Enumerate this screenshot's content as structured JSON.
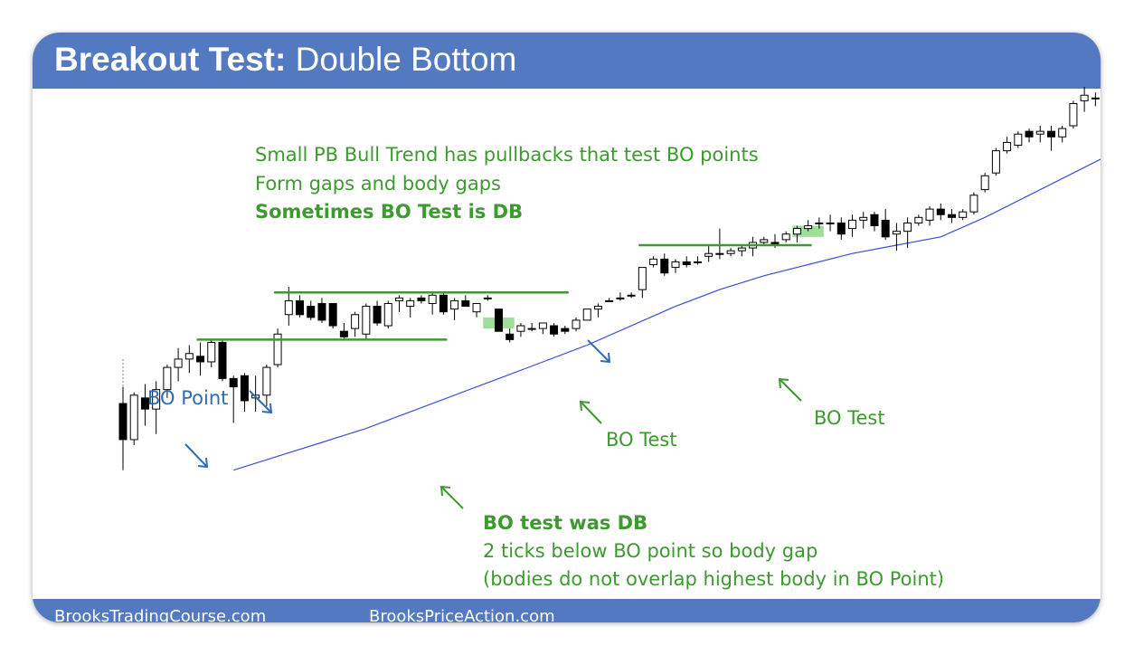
{
  "slide": {
    "title_bold": "Breakout Test:",
    "title_rest": " Double Bottom",
    "footer_left": "BrooksTradingCourse.com",
    "footer_right": "BrooksPriceAction.com",
    "header_color": "#5379c0"
  },
  "chart_data": {
    "type": "candlestick",
    "bar_fill_bull": "#ffffff",
    "bar_fill_bear": "#000000",
    "moving_average_color": "#3b4fd6",
    "breakout_line_color": "#3c9a2e",
    "annotation_green": "#3c9a2e",
    "annotation_blue": "#2e6db4",
    "highlight_color": "#86d67e",
    "bars": [
      {
        "o": 57,
        "h": 63,
        "l": 33,
        "c": 44
      },
      {
        "o": 44,
        "h": 61,
        "l": 42,
        "c": 60
      },
      {
        "o": 59,
        "h": 64,
        "l": 49,
        "c": 55
      },
      {
        "o": 55,
        "h": 65,
        "l": 46,
        "c": 62
      },
      {
        "o": 62,
        "h": 71,
        "l": 59,
        "c": 70
      },
      {
        "o": 70,
        "h": 77,
        "l": 65,
        "c": 73
      },
      {
        "o": 73,
        "h": 78,
        "l": 68,
        "c": 75
      },
      {
        "o": 74,
        "h": 79,
        "l": 67,
        "c": 72
      },
      {
        "o": 72,
        "h": 80,
        "l": 70,
        "c": 79
      },
      {
        "o": 79,
        "h": 80,
        "l": 65,
        "c": 66
      },
      {
        "o": 66,
        "h": 67,
        "l": 50,
        "c": 63
      },
      {
        "o": 67,
        "h": 68,
        "l": 54,
        "c": 58
      },
      {
        "o": 59,
        "h": 67,
        "l": 54,
        "c": 60
      },
      {
        "o": 60,
        "h": 71,
        "l": 56,
        "c": 70
      },
      {
        "o": 71,
        "h": 84,
        "l": 70,
        "c": 82
      },
      {
        "o": 89,
        "h": 99,
        "l": 85,
        "c": 94
      },
      {
        "o": 94,
        "h": 96,
        "l": 88,
        "c": 89
      },
      {
        "o": 92,
        "h": 94,
        "l": 87,
        "c": 88
      },
      {
        "o": 93,
        "h": 95,
        "l": 86,
        "c": 87
      },
      {
        "o": 93,
        "h": 93,
        "l": 84,
        "c": 85
      },
      {
        "o": 83,
        "h": 86,
        "l": 80,
        "c": 81
      },
      {
        "o": 84,
        "h": 90,
        "l": 81,
        "c": 89
      },
      {
        "o": 82,
        "h": 93,
        "l": 80,
        "c": 92
      },
      {
        "o": 92,
        "h": 94,
        "l": 85,
        "c": 86
      },
      {
        "o": 85,
        "h": 94,
        "l": 84,
        "c": 93
      },
      {
        "o": 94,
        "h": 96,
        "l": 90,
        "c": 95
      },
      {
        "o": 92,
        "h": 95,
        "l": 88,
        "c": 94
      },
      {
        "o": 95,
        "h": 96,
        "l": 93,
        "c": 94
      },
      {
        "o": 93,
        "h": 97,
        "l": 89,
        "c": 96
      },
      {
        "o": 96,
        "h": 97,
        "l": 89,
        "c": 90
      },
      {
        "o": 91,
        "h": 95,
        "l": 87,
        "c": 94
      },
      {
        "o": 94,
        "h": 96,
        "l": 92,
        "c": 92
      },
      {
        "o": 90,
        "h": 93,
        "l": 88,
        "c": 93
      },
      {
        "o": 95,
        "h": 96,
        "l": 94,
        "c": 95
      },
      {
        "o": 91,
        "h": 91,
        "l": 83,
        "c": 83
      },
      {
        "o": 82,
        "h": 84,
        "l": 79,
        "c": 80
      },
      {
        "o": 83,
        "h": 86,
        "l": 81,
        "c": 85
      },
      {
        "o": 84,
        "h": 86,
        "l": 83,
        "c": 84
      },
      {
        "o": 84,
        "h": 86,
        "l": 82,
        "c": 86
      },
      {
        "o": 85,
        "h": 86,
        "l": 81,
        "c": 82
      },
      {
        "o": 84,
        "h": 85,
        "l": 82,
        "c": 83
      },
      {
        "o": 84,
        "h": 88,
        "l": 83,
        "c": 87
      },
      {
        "o": 87,
        "h": 91,
        "l": 87,
        "c": 91
      },
      {
        "o": 91,
        "h": 93,
        "l": 88,
        "c": 92
      },
      {
        "o": 94,
        "h": 95,
        "l": 94,
        "c": 94
      },
      {
        "o": 95,
        "h": 97,
        "l": 94,
        "c": 95
      },
      {
        "o": 96,
        "h": 97,
        "l": 95,
        "c": 96
      },
      {
        "o": 98,
        "h": 106,
        "l": 95,
        "c": 106
      },
      {
        "o": 107,
        "h": 110,
        "l": 106,
        "c": 109
      },
      {
        "o": 109,
        "h": 111,
        "l": 103,
        "c": 104
      },
      {
        "o": 106,
        "h": 109,
        "l": 104,
        "c": 108
      },
      {
        "o": 108,
        "h": 110,
        "l": 106,
        "c": 107
      },
      {
        "o": 108,
        "h": 110,
        "l": 107,
        "c": 108
      },
      {
        "o": 110,
        "h": 114,
        "l": 108,
        "c": 111
      },
      {
        "o": 111,
        "h": 120,
        "l": 109,
        "c": 111
      },
      {
        "o": 111,
        "h": 113,
        "l": 110,
        "c": 112
      },
      {
        "o": 112,
        "h": 114,
        "l": 110,
        "c": 113
      },
      {
        "o": 113,
        "h": 117,
        "l": 110,
        "c": 115
      },
      {
        "o": 115,
        "h": 117,
        "l": 114,
        "c": 116
      },
      {
        "o": 115,
        "h": 118,
        "l": 113,
        "c": 114
      },
      {
        "o": 116,
        "h": 119,
        "l": 115,
        "c": 118
      },
      {
        "o": 118,
        "h": 121,
        "l": 115,
        "c": 120
      },
      {
        "o": 120,
        "h": 123,
        "l": 119,
        "c": 121
      },
      {
        "o": 122,
        "h": 124,
        "l": 120,
        "c": 122
      },
      {
        "o": 122,
        "h": 125,
        "l": 119,
        "c": 122
      },
      {
        "o": 122,
        "h": 124,
        "l": 116,
        "c": 118
      },
      {
        "o": 120,
        "h": 125,
        "l": 117,
        "c": 123
      },
      {
        "o": 123,
        "h": 126,
        "l": 120,
        "c": 124
      },
      {
        "o": 125,
        "h": 126,
        "l": 119,
        "c": 121
      },
      {
        "o": 123,
        "h": 127,
        "l": 116,
        "c": 117
      },
      {
        "o": 118,
        "h": 122,
        "l": 112,
        "c": 119
      },
      {
        "o": 119,
        "h": 124,
        "l": 113,
        "c": 122
      },
      {
        "o": 122,
        "h": 125,
        "l": 121,
        "c": 124
      },
      {
        "o": 123,
        "h": 128,
        "l": 121,
        "c": 127
      },
      {
        "o": 127,
        "h": 129,
        "l": 123,
        "c": 125
      },
      {
        "o": 125,
        "h": 127,
        "l": 122,
        "c": 124
      },
      {
        "o": 124,
        "h": 127,
        "l": 123,
        "c": 126
      },
      {
        "o": 126,
        "h": 133,
        "l": 125,
        "c": 132
      },
      {
        "o": 134,
        "h": 140,
        "l": 133,
        "c": 139
      },
      {
        "o": 140,
        "h": 149,
        "l": 139,
        "c": 148
      },
      {
        "o": 148,
        "h": 153,
        "l": 147,
        "c": 151
      },
      {
        "o": 150,
        "h": 155,
        "l": 149,
        "c": 154
      },
      {
        "o": 155,
        "h": 156,
        "l": 151,
        "c": 153
      },
      {
        "o": 154,
        "h": 157,
        "l": 151,
        "c": 155
      },
      {
        "o": 155,
        "h": 157,
        "l": 148,
        "c": 153
      },
      {
        "o": 153,
        "h": 157,
        "l": 151,
        "c": 156
      },
      {
        "o": 157,
        "h": 166,
        "l": 156,
        "c": 165
      },
      {
        "o": 166,
        "h": 171,
        "l": 162,
        "c": 168
      },
      {
        "o": 167,
        "h": 169,
        "l": 164,
        "c": 167
      },
      {
        "o": 166,
        "h": 171,
        "l": 163,
        "c": 168
      },
      {
        "o": 167,
        "h": 171,
        "l": 163,
        "c": 170
      },
      {
        "o": 170,
        "h": 181,
        "l": 164,
        "c": 180
      },
      {
        "o": 180,
        "h": 181,
        "l": 172,
        "c": 177
      },
      {
        "o": 176,
        "h": 179,
        "l": 174,
        "c": 175
      },
      {
        "o": 175,
        "h": 186,
        "l": 174,
        "c": 184
      },
      {
        "o": 184,
        "h": 192,
        "l": 182,
        "c": 185
      }
    ],
    "moving_average": [
      {
        "i": 10,
        "v": 33
      },
      {
        "i": 14,
        "v": 38
      },
      {
        "i": 18,
        "v": 43
      },
      {
        "i": 22,
        "v": 48
      },
      {
        "i": 26,
        "v": 54
      },
      {
        "i": 30,
        "v": 60
      },
      {
        "i": 34,
        "v": 66
      },
      {
        "i": 38,
        "v": 72
      },
      {
        "i": 42,
        "v": 78
      },
      {
        "i": 46,
        "v": 85
      },
      {
        "i": 50,
        "v": 92
      },
      {
        "i": 54,
        "v": 98
      },
      {
        "i": 58,
        "v": 103
      },
      {
        "i": 62,
        "v": 107
      },
      {
        "i": 66,
        "v": 111
      },
      {
        "i": 70,
        "v": 114
      },
      {
        "i": 74,
        "v": 117
      },
      {
        "i": 78,
        "v": 124
      },
      {
        "i": 82,
        "v": 132
      },
      {
        "i": 86,
        "v": 140
      },
      {
        "i": 90,
        "v": 148
      },
      {
        "i": 95,
        "v": 160
      }
    ],
    "breakout_lines": [
      {
        "from": 7,
        "to": 29,
        "value": 80
      },
      {
        "from": 14,
        "to": 40,
        "value": 97
      },
      {
        "from": 47,
        "to": 62,
        "value": 114
      }
    ],
    "dotted_marker": {
      "i": 0,
      "top": 73,
      "bottom": 61
    },
    "highlights": [
      {
        "from": 33,
        "to": 35,
        "low": 84,
        "high": 88
      },
      {
        "from": 61,
        "to": 63,
        "low": 117,
        "high": 121
      }
    ],
    "annotations": {
      "top_line1": "Small PB Bull Trend has pullbacks that test BO points",
      "top_line2": "Form gaps and body gaps",
      "top_line3": "Sometimes BO Test is DB",
      "bo_point": "BO Point",
      "bo_test_mid": "BO Test",
      "bo_test_right": "BO Test",
      "bottom_line1": "BO test was DB",
      "bottom_line2": "2 ticks below BO point so body gap",
      "bottom_line3": "(bodies do not overlap highest body in BO Point)"
    }
  }
}
